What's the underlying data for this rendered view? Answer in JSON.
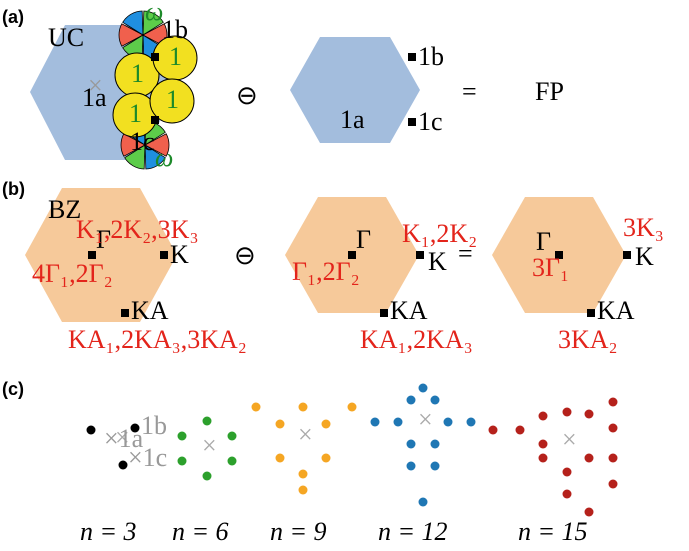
{
  "panel_a": {
    "tag": "(a)",
    "uc": "UC",
    "site_1a": "1a",
    "site_1b": "1b",
    "site_1c": "1c",
    "orbital": "1",
    "omega": "ω",
    "minus": "⊖",
    "equals": "=",
    "result": "FP"
  },
  "panel_b": {
    "tag": "(b)",
    "bz": "BZ",
    "gamma": "Γ",
    "k": "K",
    "ka": "KA",
    "minus": "⊖",
    "equals": "=",
    "left": {
      "k_irreps": "K₁,2K₂,3K₃",
      "gamma_irreps": "4Γ₁,2Γ₂",
      "ka_irreps": "KA₁,2KA₃,3KA₂"
    },
    "middle": {
      "k_irreps": "K₁,2K₂",
      "gamma_irreps": "Γ₁,2Γ₂",
      "ka_irreps": "KA₁,2KA₃"
    },
    "right": {
      "k_irreps": "3K₃",
      "gamma_irreps": "3Γ₁",
      "ka_irreps": "3KA₂"
    }
  },
  "panel_c": {
    "tag": "(c)",
    "site_1a": "1a",
    "site_1b": "1b",
    "site_1c": "1c",
    "cross": "×",
    "labels": [
      "n = 3",
      "n = 6",
      "n = 9",
      "n = 12",
      "n = 15"
    ]
  }
}
